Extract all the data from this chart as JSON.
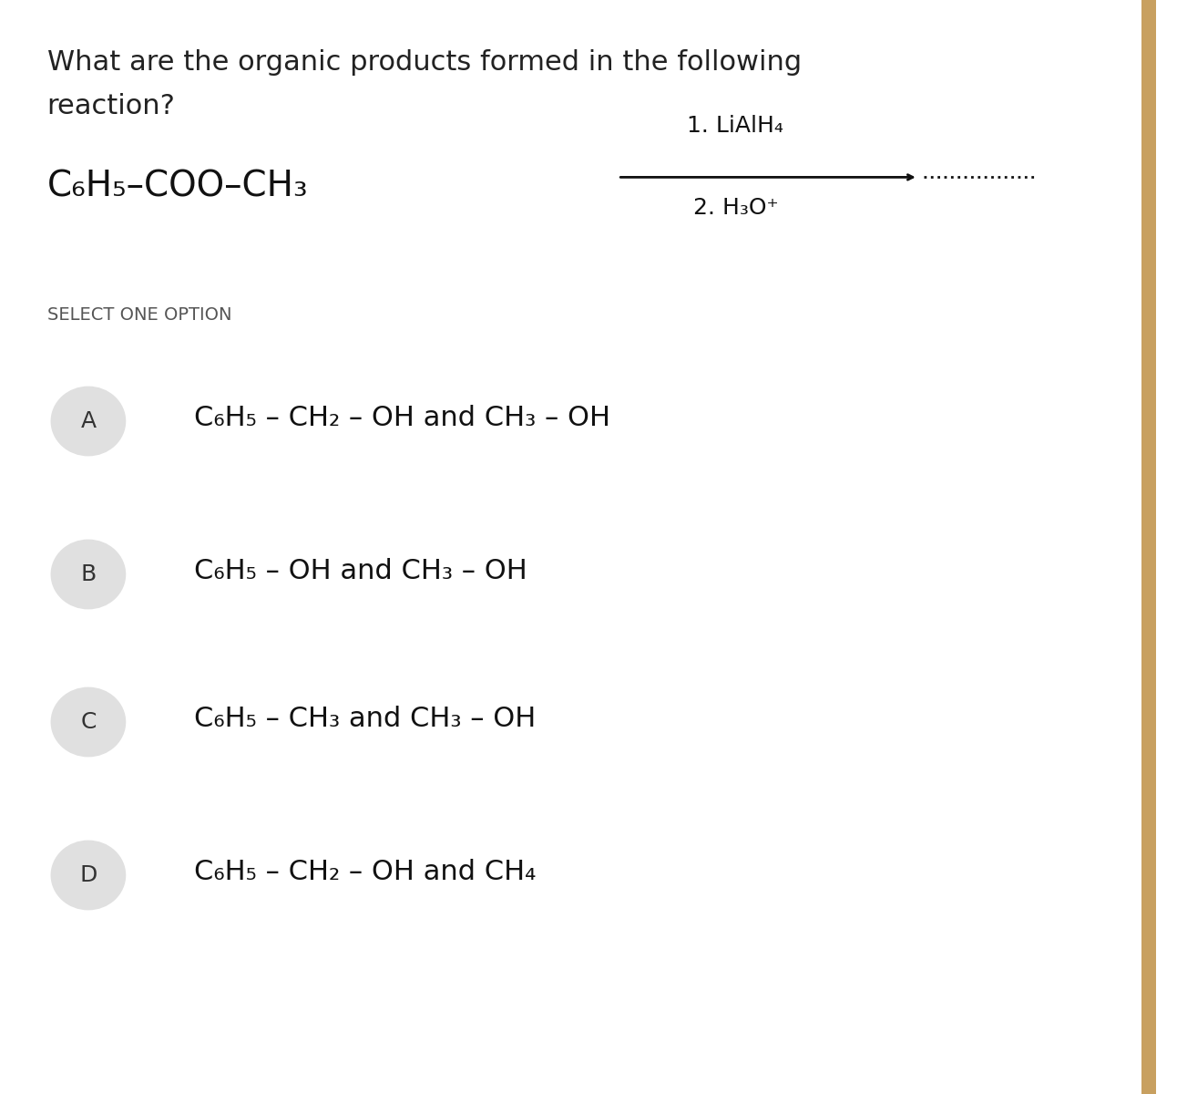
{
  "background_color": "#ffffff",
  "fig_width": 12.92,
  "fig_height": 12.0,
  "question_text_line1": "What are the organic products formed in the following",
  "question_text_line2": "reaction?",
  "reactant": "C₆H₅–COO–CH₃",
  "reagent_line1": "1. LiAlH₄",
  "reagent_line2": "2. H₃O⁺",
  "select_text": "SELECT ONE OPTION",
  "options": [
    {
      "label": "A",
      "text": "C₆H₅ – CH₂ – OH and CH₃ – OH",
      "circle_color": "#e0e0e0"
    },
    {
      "label": "B",
      "text": "C₆H₅ – OH and CH₃ – OH",
      "circle_color": "#e0e0e0"
    },
    {
      "label": "C",
      "text": "C₆H₅ – CH₃ and CH₃ – OH",
      "circle_color": "#e0e0e0"
    },
    {
      "label": "D",
      "text": "C₆H₅ – CH₂ – OH and CH₄",
      "circle_color": "#e0e0e0"
    }
  ],
  "right_bar_color": "#c8a060"
}
